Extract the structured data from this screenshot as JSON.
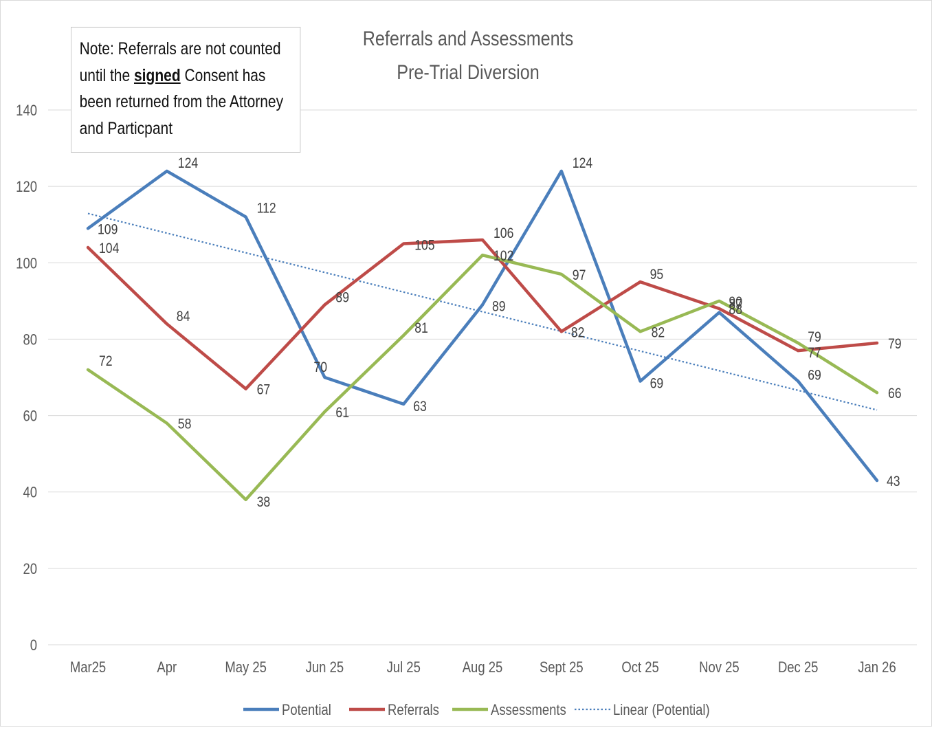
{
  "note": {
    "before": "Note: Referrals are not counted until the ",
    "emphasis": "signed",
    "after": " Consent has been returned from the Attorney and Particpant"
  },
  "colors": {
    "potential": "#4a7ebb",
    "referrals": "#be4b48",
    "assessments": "#98b954",
    "trend": "#4a7ebb",
    "grid": "#d9d9d9",
    "axis_text": "#595959"
  },
  "chart_data": {
    "type": "line",
    "title": "Referrals and Assessments",
    "subtitle": "Pre-Trial Diversion",
    "xlabel": "",
    "ylabel": "",
    "categories": [
      "Mar25",
      "Apr",
      "May 25",
      "Jun 25",
      "Jul 25",
      "Aug 25",
      "Sept 25",
      "Oct 25",
      "Nov 25",
      "Dec 25",
      "Jan 26"
    ],
    "ylim": [
      0,
      140
    ],
    "yticks": [
      0,
      20,
      40,
      60,
      80,
      100,
      120,
      140
    ],
    "grid": true,
    "legend": "bottom",
    "data_labels": true,
    "series": [
      {
        "name": "Potential",
        "key": "potential",
        "values": [
          109,
          124,
          112,
          70,
          63,
          89,
          124,
          69,
          87,
          69,
          43
        ]
      },
      {
        "name": "Referrals",
        "key": "referrals",
        "values": [
          104,
          84,
          67,
          89,
          105,
          106,
          82,
          95,
          88,
          77,
          79
        ]
      },
      {
        "name": "Assessments",
        "key": "assessments",
        "values": [
          72,
          58,
          38,
          61,
          81,
          102,
          97,
          82,
          90,
          79,
          66
        ]
      }
    ],
    "trendline": {
      "name": "Linear (Potential)",
      "of": "Potential",
      "type": "linear"
    }
  }
}
